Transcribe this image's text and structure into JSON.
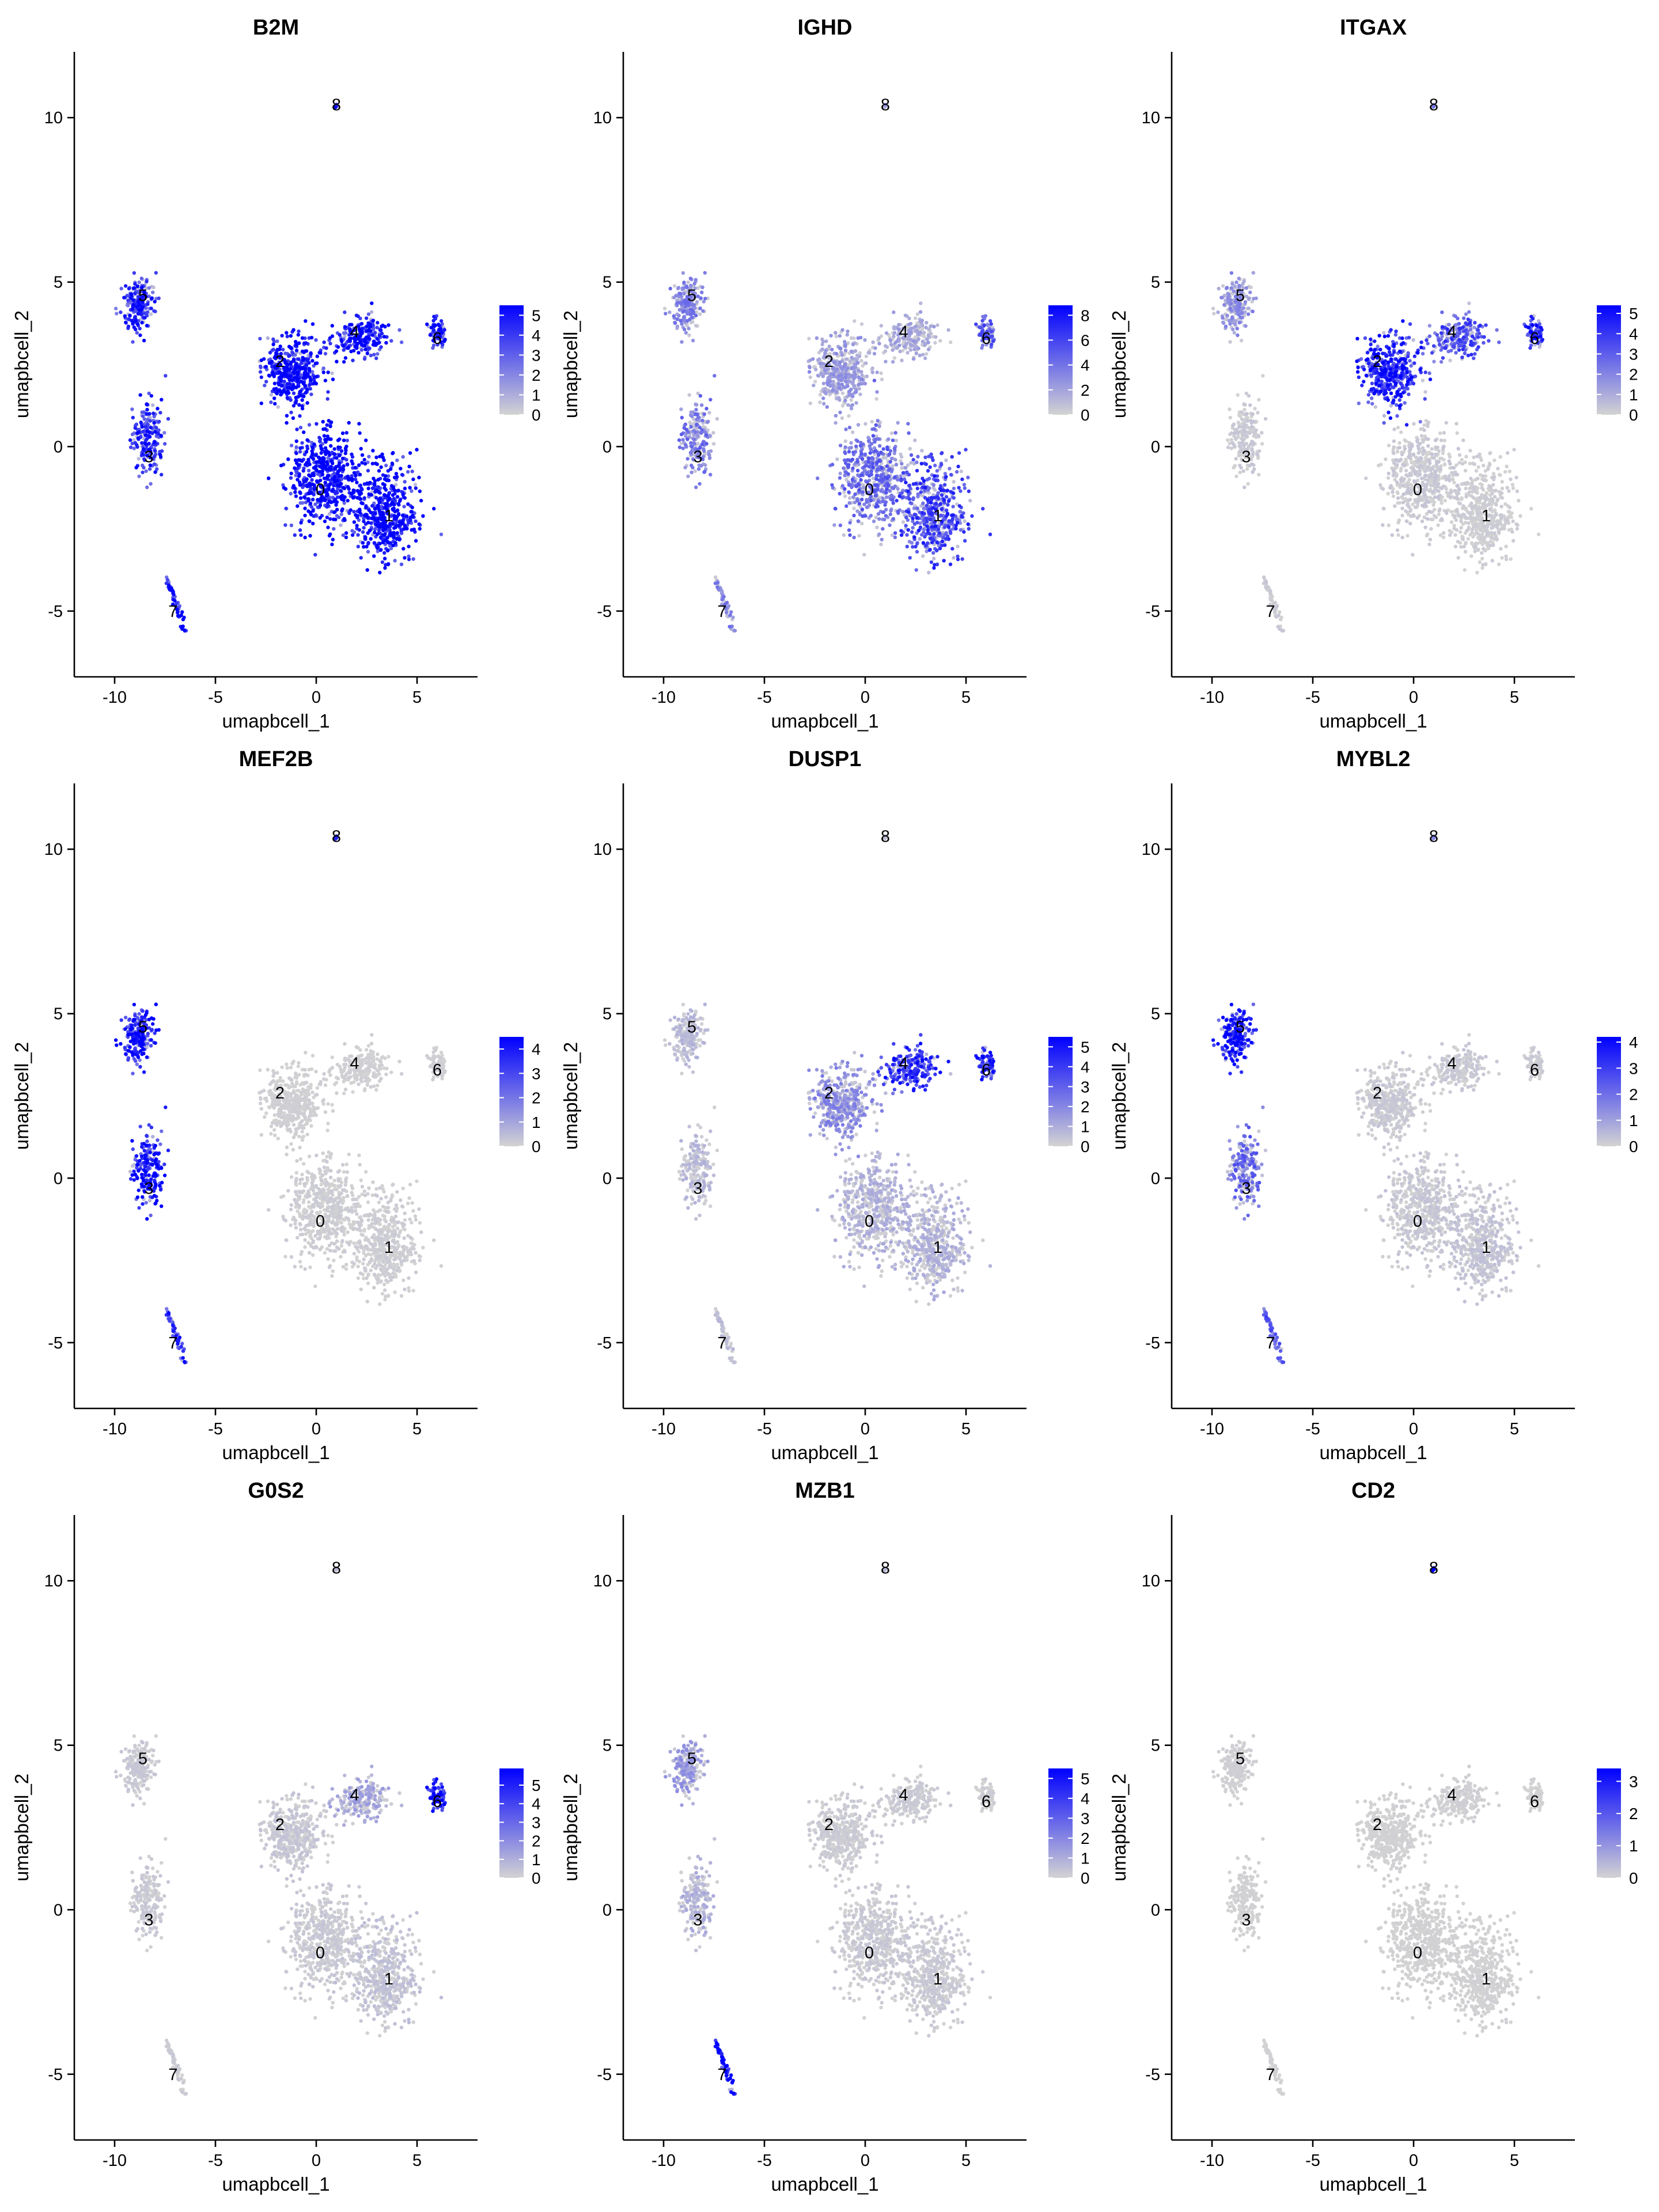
{
  "chart_data": [
    {
      "type": "scatter",
      "title": "B2M",
      "xlabel": "umapbcell_1",
      "ylabel": "umapbcell_2",
      "xticks": [
        -10,
        -5,
        0,
        5
      ],
      "yticks": [
        -5,
        0,
        5,
        10
      ],
      "xlim": [
        -12,
        8
      ],
      "ylim": [
        -7,
        12
      ],
      "legend_ticks": [
        0,
        1,
        2,
        3,
        4,
        5
      ],
      "legend_max": 5.5,
      "cluster_labels": [
        "0",
        "1",
        "2",
        "3",
        "4",
        "5",
        "6",
        "7",
        "8"
      ],
      "cluster_expression": {
        "0": 0.92,
        "1": 0.92,
        "2": 0.9,
        "3": 0.72,
        "4": 0.88,
        "5": 0.72,
        "6": 0.8,
        "7": 0.85,
        "8": 0.9
      }
    },
    {
      "type": "scatter",
      "title": "IGHD",
      "xlabel": "umapbcell_1",
      "ylabel": "umapbcell_2",
      "xticks": [
        -10,
        -5,
        0,
        5
      ],
      "yticks": [
        -5,
        0,
        5,
        10
      ],
      "xlim": [
        -12,
        8
      ],
      "ylim": [
        -7,
        12
      ],
      "legend_ticks": [
        0,
        2,
        4,
        6,
        8
      ],
      "legend_max": 8.8,
      "cluster_labels": [
        "0",
        "1",
        "2",
        "3",
        "4",
        "5",
        "6",
        "7",
        "8"
      ],
      "cluster_expression": {
        "0": 0.45,
        "1": 0.62,
        "2": 0.25,
        "3": 0.4,
        "4": 0.2,
        "5": 0.35,
        "6": 0.5,
        "7": 0.35,
        "8": 0.3
      }
    },
    {
      "type": "scatter",
      "title": "ITGAX",
      "xlabel": "umapbcell_1",
      "ylabel": "umapbcell_2",
      "xticks": [
        -10,
        -5,
        0,
        5
      ],
      "yticks": [
        -5,
        0,
        5,
        10
      ],
      "xlim": [
        -12,
        8
      ],
      "ylim": [
        -7,
        12
      ],
      "legend_ticks": [
        0,
        1,
        2,
        3,
        4,
        5
      ],
      "legend_max": 5.4,
      "cluster_labels": [
        "0",
        "1",
        "2",
        "3",
        "4",
        "5",
        "6",
        "7",
        "8"
      ],
      "cluster_expression": {
        "0": 0.05,
        "1": 0.03,
        "2": 0.75,
        "3": 0.05,
        "4": 0.55,
        "5": 0.3,
        "6": 0.75,
        "7": 0.05,
        "8": 0.4
      }
    },
    {
      "type": "scatter",
      "title": "MEF2B",
      "xlabel": "umapbcell_1",
      "ylabel": "umapbcell_2",
      "xticks": [
        -10,
        -5,
        0,
        5
      ],
      "yticks": [
        -5,
        0,
        5,
        10
      ],
      "xlim": [
        -12,
        8
      ],
      "ylim": [
        -7,
        12
      ],
      "legend_ticks": [
        0,
        1,
        2,
        3,
        4
      ],
      "legend_max": 4.5,
      "cluster_labels": [
        "0",
        "1",
        "2",
        "3",
        "4",
        "5",
        "6",
        "7",
        "8"
      ],
      "cluster_expression": {
        "0": 0.03,
        "1": 0.03,
        "2": 0.02,
        "3": 0.8,
        "4": 0.02,
        "5": 0.8,
        "6": 0.02,
        "7": 0.7,
        "8": 0.6
      }
    },
    {
      "type": "scatter",
      "title": "DUSP1",
      "xlabel": "umapbcell_1",
      "ylabel": "umapbcell_2",
      "xticks": [
        -10,
        -5,
        0,
        5
      ],
      "yticks": [
        -5,
        0,
        5,
        10
      ],
      "xlim": [
        -12,
        8
      ],
      "ylim": [
        -7,
        12
      ],
      "legend_ticks": [
        0,
        1,
        2,
        3,
        4,
        5
      ],
      "legend_max": 5.5,
      "cluster_labels": [
        "0",
        "1",
        "2",
        "3",
        "4",
        "5",
        "6",
        "7",
        "8"
      ],
      "cluster_expression": {
        "0": 0.15,
        "1": 0.15,
        "2": 0.3,
        "3": 0.12,
        "4": 0.7,
        "5": 0.12,
        "6": 0.7,
        "7": 0.1,
        "8": 0.1
      }
    },
    {
      "type": "scatter",
      "title": "MYBL2",
      "xlabel": "umapbcell_1",
      "ylabel": "umapbcell_2",
      "xticks": [
        -10,
        -5,
        0,
        5
      ],
      "yticks": [
        -5,
        0,
        5,
        10
      ],
      "xlim": [
        -12,
        8
      ],
      "ylim": [
        -7,
        12
      ],
      "legend_ticks": [
        0,
        1,
        2,
        3,
        4
      ],
      "legend_max": 4.2,
      "cluster_labels": [
        "0",
        "1",
        "2",
        "3",
        "4",
        "5",
        "6",
        "7",
        "8"
      ],
      "cluster_expression": {
        "0": 0.06,
        "1": 0.07,
        "2": 0.05,
        "3": 0.45,
        "4": 0.05,
        "5": 0.8,
        "6": 0.05,
        "7": 0.5,
        "8": 0.3
      }
    },
    {
      "type": "scatter",
      "title": "G0S2",
      "xlabel": "umapbcell_1",
      "ylabel": "umapbcell_2",
      "xticks": [
        -10,
        -5,
        0,
        5
      ],
      "yticks": [
        -5,
        0,
        5,
        10
      ],
      "xlim": [
        -12,
        8
      ],
      "ylim": [
        -7,
        12
      ],
      "legend_ticks": [
        0,
        1,
        2,
        3,
        4,
        5
      ],
      "legend_max": 5.9,
      "cluster_labels": [
        "0",
        "1",
        "2",
        "3",
        "4",
        "5",
        "6",
        "7",
        "8"
      ],
      "cluster_expression": {
        "0": 0.05,
        "1": 0.08,
        "2": 0.06,
        "3": 0.05,
        "4": 0.2,
        "5": 0.05,
        "6": 0.8,
        "7": 0.04,
        "8": 0.1
      }
    },
    {
      "type": "scatter",
      "title": "MZB1",
      "xlabel": "umapbcell_1",
      "ylabel": "umapbcell_2",
      "xticks": [
        -10,
        -5,
        0,
        5
      ],
      "yticks": [
        -5,
        0,
        5,
        10
      ],
      "xlim": [
        -12,
        8
      ],
      "ylim": [
        -7,
        12
      ],
      "legend_ticks": [
        0,
        1,
        2,
        3,
        4,
        5
      ],
      "legend_max": 5.5,
      "cluster_labels": [
        "0",
        "1",
        "2",
        "3",
        "4",
        "5",
        "6",
        "7",
        "8"
      ],
      "cluster_expression": {
        "0": 0.05,
        "1": 0.05,
        "2": 0.04,
        "3": 0.15,
        "4": 0.04,
        "5": 0.25,
        "6": 0.03,
        "7": 0.9,
        "8": 0.1
      }
    },
    {
      "type": "scatter",
      "title": "CD2",
      "xlabel": "umapbcell_1",
      "ylabel": "umapbcell_2",
      "xticks": [
        -10,
        -5,
        0,
        5
      ],
      "yticks": [
        -5,
        0,
        5,
        10
      ],
      "xlim": [
        -12,
        8
      ],
      "ylim": [
        -7,
        12
      ],
      "legend_ticks": [
        0,
        1,
        2,
        3
      ],
      "legend_max": 3.4,
      "cluster_labels": [
        "0",
        "1",
        "2",
        "3",
        "4",
        "5",
        "6",
        "7",
        "8"
      ],
      "cluster_expression": {
        "0": 0.01,
        "1": 0.01,
        "2": 0.01,
        "3": 0.01,
        "4": 0.02,
        "5": 0.02,
        "6": 0.01,
        "7": 0.01,
        "8": 0.85
      }
    }
  ],
  "clusters": {
    "0": {
      "x": 0.2,
      "y": -1.3
    },
    "1": {
      "x": 3.6,
      "y": -2.1
    },
    "2": {
      "x": -1.8,
      "y": 2.6
    },
    "3": {
      "x": -8.3,
      "y": -0.3
    },
    "4": {
      "x": 1.9,
      "y": 3.5
    },
    "5": {
      "x": -8.6,
      "y": 4.6
    },
    "6": {
      "x": 6.0,
      "y": 3.3
    },
    "7": {
      "x": -7.1,
      "y": -5.0
    },
    "8": {
      "x": 1.0,
      "y": 10.4
    }
  },
  "colors": {
    "low": "#D3D3D3",
    "high": "#0000FF",
    "axis": "#000000",
    "background": "#FFFFFF"
  }
}
